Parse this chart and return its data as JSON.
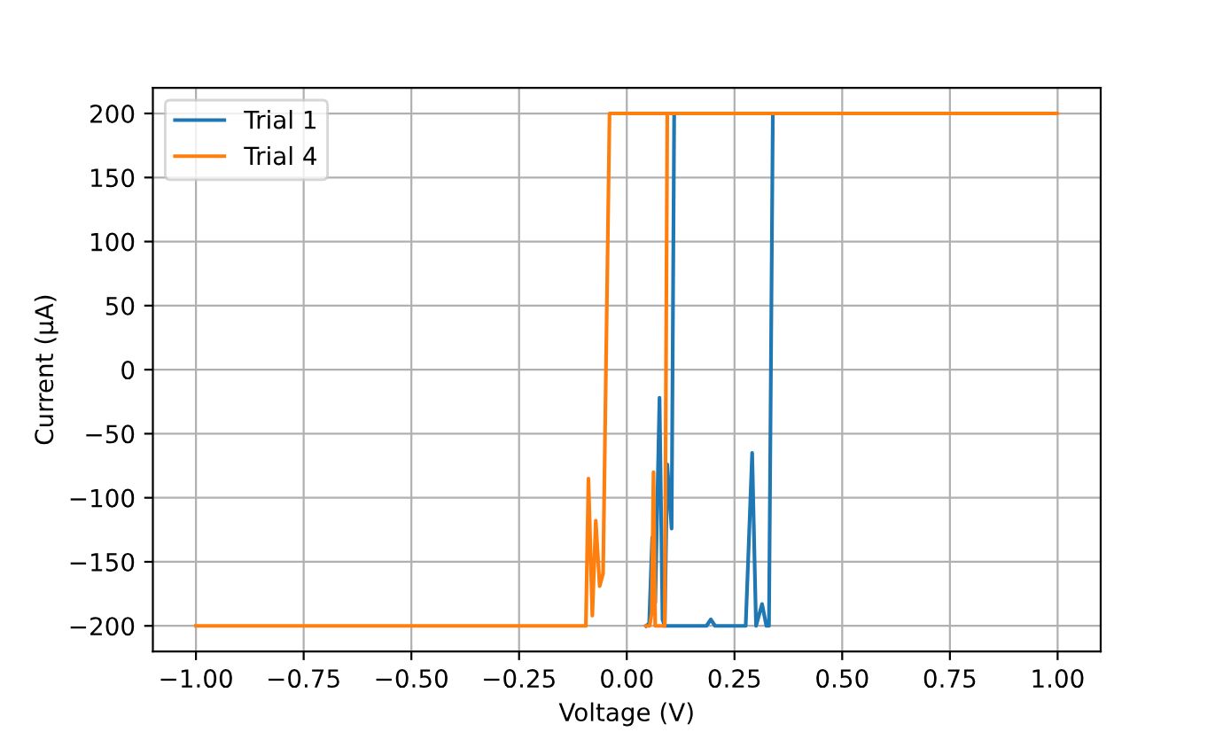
{
  "chart_data": {
    "type": "line",
    "xlabel": "Voltage (V)",
    "ylabel": "Current (µA)",
    "xlim": [
      -1.1,
      1.1
    ],
    "ylim": [
      -220,
      220
    ],
    "xticks": [
      {
        "value": -1.0,
        "label": "−1.00"
      },
      {
        "value": -0.75,
        "label": "−0.75"
      },
      {
        "value": -0.5,
        "label": "−0.50"
      },
      {
        "value": -0.25,
        "label": "−0.25"
      },
      {
        "value": 0,
        "label": "0.00"
      },
      {
        "value": 0.25,
        "label": "0.25"
      },
      {
        "value": 0.5,
        "label": "0.50"
      },
      {
        "value": 0.75,
        "label": "0.75"
      },
      {
        "value": 1.0,
        "label": "1.00"
      }
    ],
    "yticks": [
      {
        "value": -200,
        "label": "−200"
      },
      {
        "value": -150,
        "label": "−150"
      },
      {
        "value": -100,
        "label": "−100"
      },
      {
        "value": -50,
        "label": "−50"
      },
      0,
      50,
      100,
      150,
      200
    ],
    "grid": true,
    "legend": "top left",
    "marker": "none",
    "line_style": "solid",
    "series": [
      {
        "name": "Trial 1",
        "color": "#1f77b4",
        "x": [
          0.045,
          0.052,
          0.059,
          0.066,
          0.076,
          0.083,
          0.088,
          0.094,
          0.104,
          0.11,
          0.339,
          0.33,
          0.324,
          0.314,
          0.3,
          0.291,
          0.276,
          0.205,
          0.195,
          0.185,
          0.088
        ],
        "values": [
          -200,
          -198,
          -131,
          -182,
          -22,
          -195,
          -200,
          -74,
          -124,
          200,
          200,
          -200,
          -200,
          -183,
          -200,
          -65,
          -200,
          -200,
          -195,
          -200,
          -200
        ]
      },
      {
        "name": "Trial 4",
        "color": "#ff7f0e",
        "x": [
          -1,
          -0.095,
          -0.089,
          -0.08,
          -0.072,
          -0.063,
          -0.055,
          -0.04,
          1.0,
          0.094,
          0.088,
          0.066,
          0.062,
          0.058,
          0.053,
          0.045
        ],
        "values": [
          -200,
          -200,
          -85,
          -192,
          -118,
          -169,
          -159,
          200,
          200,
          200,
          -200,
          -200,
          -80,
          -190,
          -200,
          -200
        ]
      }
    ]
  }
}
